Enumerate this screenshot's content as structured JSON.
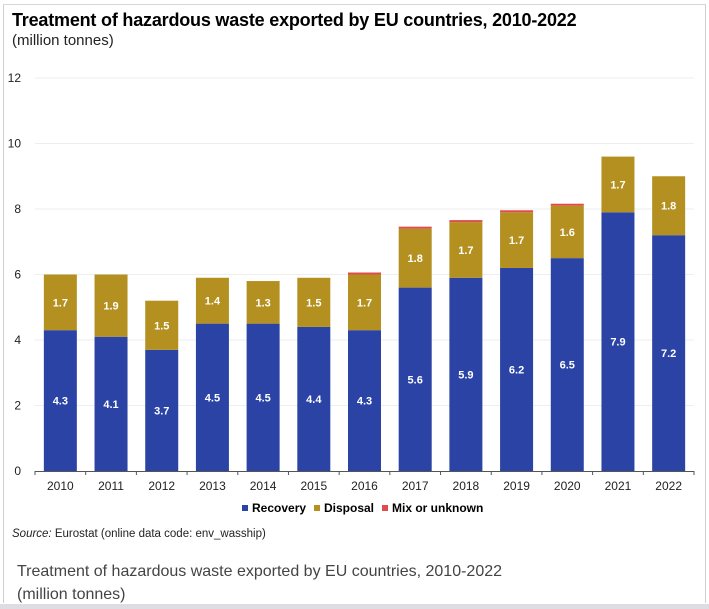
{
  "chart_data": {
    "type": "bar",
    "stacked": true,
    "title": "Treatment of hazardous waste exported by EU countries, 2010-2022",
    "subtitle": "(million tonnes)",
    "xlabel": "",
    "ylabel": "",
    "ylim": [
      0,
      12
    ],
    "yticks": [
      "0",
      "2",
      "4",
      "6",
      "8",
      "10",
      "12"
    ],
    "grid": true,
    "legend_position": "bottom-center",
    "categories": [
      "2010",
      "2011",
      "2012",
      "2013",
      "2014",
      "2015",
      "2016",
      "2017",
      "2018",
      "2019",
      "2020",
      "2021",
      "2022"
    ],
    "series": [
      {
        "name": "Recovery",
        "color": "#2a43a5",
        "values": [
          4.3,
          4.1,
          3.7,
          4.5,
          4.5,
          4.4,
          4.3,
          5.6,
          5.9,
          6.2,
          6.5,
          7.9,
          7.2
        ],
        "labels": [
          "4.3",
          "4.1",
          "3.7",
          "4.5",
          "4.5",
          "4.4",
          "4.3",
          "5.6",
          "5.9",
          "6.2",
          "6.5",
          "7.9",
          "7.2"
        ]
      },
      {
        "name": "Disposal",
        "color": "#b39020",
        "values": [
          1.7,
          1.9,
          1.5,
          1.4,
          1.3,
          1.5,
          1.7,
          1.8,
          1.7,
          1.7,
          1.6,
          1.7,
          1.8
        ],
        "labels": [
          "1.7",
          "1.9",
          "1.5",
          "1.4",
          "1.3",
          "1.5",
          "1.7",
          "1.8",
          "1.7",
          "1.7",
          "1.6",
          "1.7",
          "1.8"
        ]
      },
      {
        "name": "Mix or unknown",
        "color": "#e04c4c",
        "values": [
          0,
          0,
          0,
          0,
          0,
          0,
          0.05,
          0.05,
          0.02,
          0.01,
          0.05,
          0,
          0
        ],
        "labels": []
      }
    ],
    "totals_estimated": [
      6.03,
      5.95,
      5.16,
      5.89,
      5.73,
      5.86,
      6.08,
      7.42,
      7.64,
      7.93,
      8.18,
      9.58,
      9.02
    ]
  },
  "legend": {
    "items": [
      {
        "label": "Recovery",
        "color": "#2a43a5"
      },
      {
        "label": "Disposal",
        "color": "#b39020"
      },
      {
        "label": "Mix or unknown",
        "color": "#e04c4c"
      }
    ]
  },
  "source": {
    "prefix": "Source:",
    "text": " Eurostat (online data code: env_wasship)"
  },
  "caption": {
    "line1": "Treatment of hazardous waste exported by EU countries, 2010-2022",
    "line2": "(million tonnes)"
  }
}
